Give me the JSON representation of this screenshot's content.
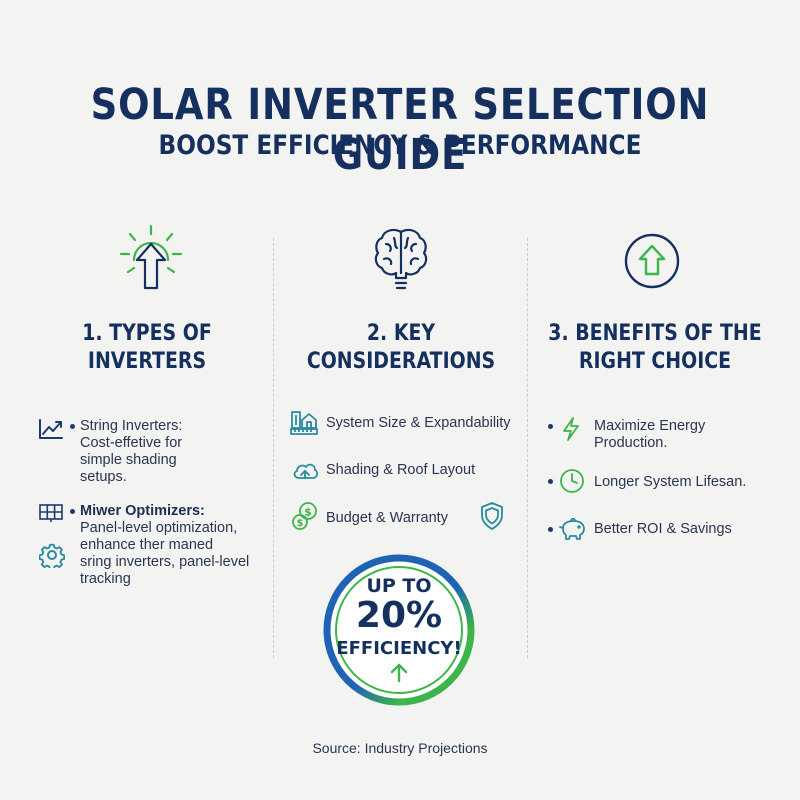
{
  "header": {
    "title": "SOLAR INVERTER SELECTION GUIDE",
    "subtitle": "BOOST EFFICIENCY & PERFORMANCE"
  },
  "columns": [
    {
      "heading": "1. TYPES OF INVERTERS",
      "icon": "sun-arrow-icon",
      "items": [
        {
          "icon": "line-chart-icon",
          "title": "String Inverters:",
          "text": [
            "Cost-effetive for",
            "simple shading",
            "setups."
          ]
        },
        {
          "icon": "solar-panel-icon",
          "title": "Miwer Optimizers:",
          "text": [
            "Panel-level optimization,",
            "enhance ther maned",
            "sring inverters, panel-level",
            "tracking"
          ]
        }
      ],
      "extra_icon": "gear-icon"
    },
    {
      "heading": "2. KEY CONSIDERATIONS",
      "icon": "brain-bulb-icon",
      "items": [
        {
          "icon": "building-ruler-icon",
          "text": "System Size & Expandability"
        },
        {
          "icon": "cloud-roof-icon",
          "text": "Shading & Roof Layout"
        },
        {
          "icon": "dollar-coins-icon",
          "text": "Budget & Warranty"
        }
      ],
      "extra_icon": "shield-icon",
      "badge": {
        "line1": "UP TO",
        "line2": "20%",
        "line3": "EFFICIENCY!"
      }
    },
    {
      "heading_lines": [
        "3. BENEFITS OF THE",
        "RIGHT CHOICE"
      ],
      "icon": "up-arrow-circle-icon",
      "items": [
        {
          "icon": "lightning-icon",
          "text": [
            "Maximize Energy",
            "Production."
          ]
        },
        {
          "icon": "clock-icon",
          "text": "Longer System Lifesan."
        },
        {
          "icon": "piggy-bank-icon",
          "text": "Better ROI & Savings"
        }
      ]
    }
  ],
  "footer": {
    "source": "Source: Industry Projections"
  },
  "colors": {
    "navy": "#15305f",
    "green": "#3db54a",
    "blue": "#1f63b5",
    "teal": "#2a8aa0"
  }
}
